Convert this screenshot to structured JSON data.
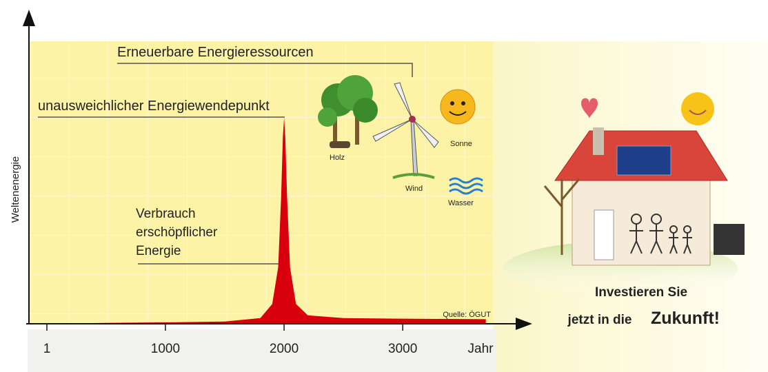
{
  "chart_data": {
    "type": "area",
    "y_label": "Weltenenergie",
    "x_label": "Jahr",
    "x": [
      -150,
      500,
      1000,
      1500,
      1800,
      1900,
      1950,
      1975,
      1990,
      2000,
      2010,
      2025,
      2050,
      2100,
      2200,
      2500,
      3000,
      3700
    ],
    "values": [
      0,
      0.3,
      0.5,
      0.8,
      2,
      7,
      20,
      45,
      66,
      73,
      66,
      45,
      20,
      7,
      3,
      2,
      1.8,
      1.6
    ],
    "color": "#d9000d",
    "xlim": [
      -150,
      3760
    ],
    "ylim": [
      0,
      100
    ],
    "xticks": [
      1,
      1000,
      2000,
      3000
    ],
    "annotations": {
      "renewables": "Erneuerbare Energieressourcen",
      "turning_point": "unausweichlicher Energiewendepunkt",
      "consumption": [
        "Verbrauch",
        "erschöpflicher",
        "Energie"
      ],
      "source": "Quelle: ÖGUT"
    }
  },
  "illustration": {
    "labels": [
      "Holz",
      "Wind",
      "Sonne",
      "Wasser"
    ],
    "slogan": [
      "Investieren Sie",
      "jetzt in die",
      "Zukunft!"
    ]
  }
}
